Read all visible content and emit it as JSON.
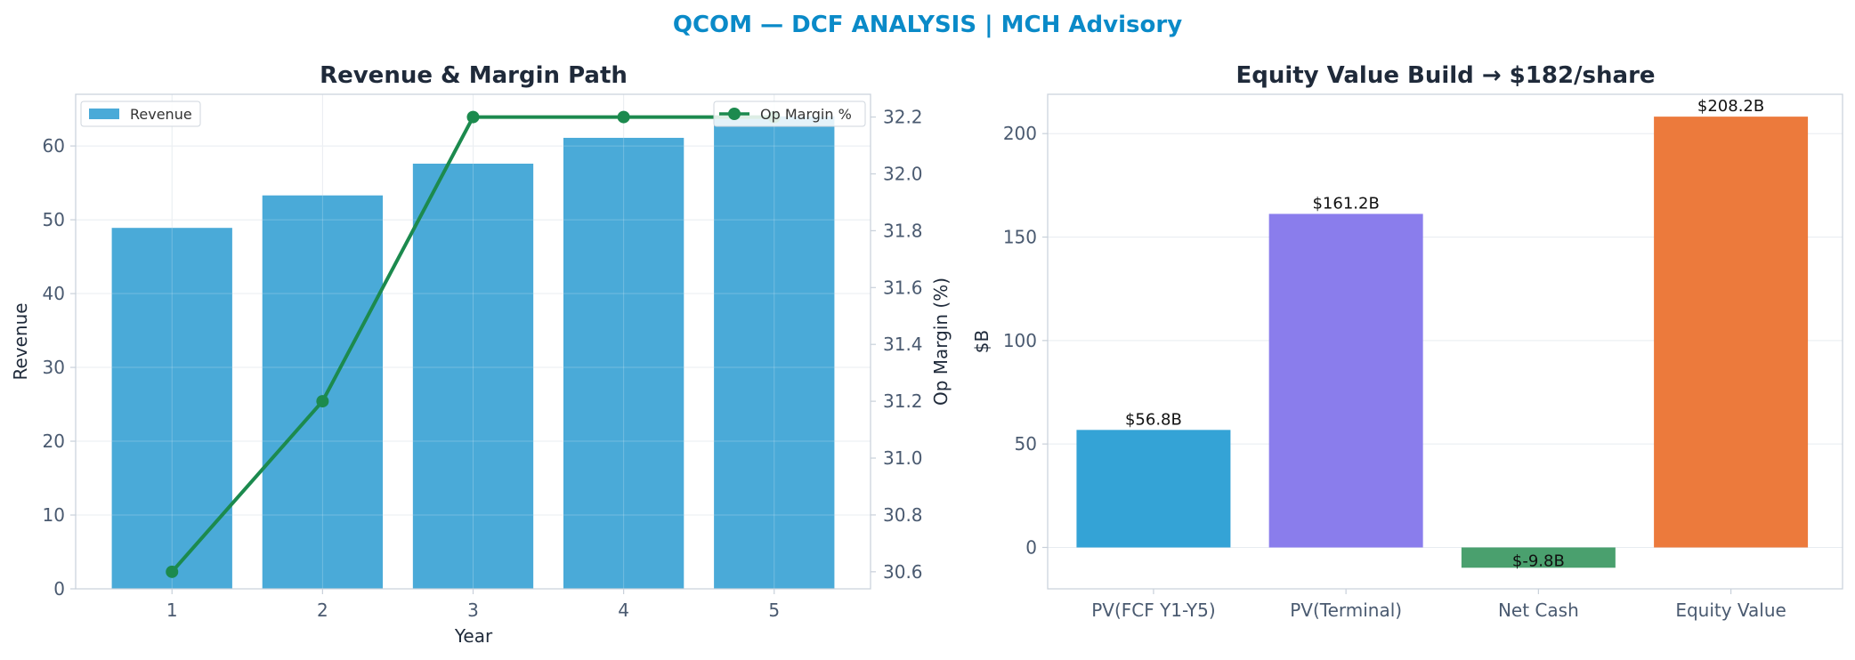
{
  "figure": {
    "title": "QCOM — DCF ANALYSIS | MCH Advisory",
    "title_color": "#0a8ac8"
  },
  "chart_data": [
    {
      "type": "bar",
      "title": "Revenue & Margin Path",
      "xlabel": "Year",
      "ylabel": "Revenue",
      "y2label": "Op Margin (%)",
      "categories": [
        1,
        2,
        3,
        4,
        5
      ],
      "ylim": [
        0,
        67
      ],
      "yticks": [
        0,
        10,
        20,
        30,
        40,
        50,
        60
      ],
      "y2lim": [
        30.54,
        32.28
      ],
      "y2ticks": [
        30.6,
        30.8,
        31.0,
        31.2,
        31.4,
        31.6,
        31.8,
        32.0,
        32.2
      ],
      "grid": true,
      "series": [
        {
          "name": "Revenue",
          "kind": "bar",
          "axis": "left",
          "color": "#4aaad8",
          "values": [
            48.9,
            53.3,
            57.6,
            61.1,
            64.0
          ]
        },
        {
          "name": "Op Margin %",
          "kind": "line",
          "axis": "right",
          "color": "#1c8a4e",
          "values": [
            30.6,
            31.2,
            32.2,
            32.2,
            32.2
          ]
        }
      ],
      "legend": [
        {
          "label": "Revenue",
          "placement": "top-left"
        },
        {
          "label": "Op Margin %",
          "placement": "top-right"
        }
      ]
    },
    {
      "type": "bar",
      "title": "Equity Value Build → $182/share",
      "xlabel": "",
      "ylabel": "$B",
      "categories": [
        "PV(FCF Y1-Y5)",
        "PV(Terminal)",
        "Net Cash",
        "Equity Value"
      ],
      "values": [
        56.8,
        161.2,
        -9.8,
        208.2
      ],
      "data_labels": [
        "$56.8B",
        "$161.2B",
        "$-9.8B",
        "$208.2B"
      ],
      "colors": [
        "#34a3d6",
        "#8a7dec",
        "#4aa06e",
        "#ec7a3c"
      ],
      "ylim": [
        -20,
        219
      ],
      "yticks": [
        0,
        50,
        100,
        150,
        200
      ],
      "grid": true
    }
  ]
}
